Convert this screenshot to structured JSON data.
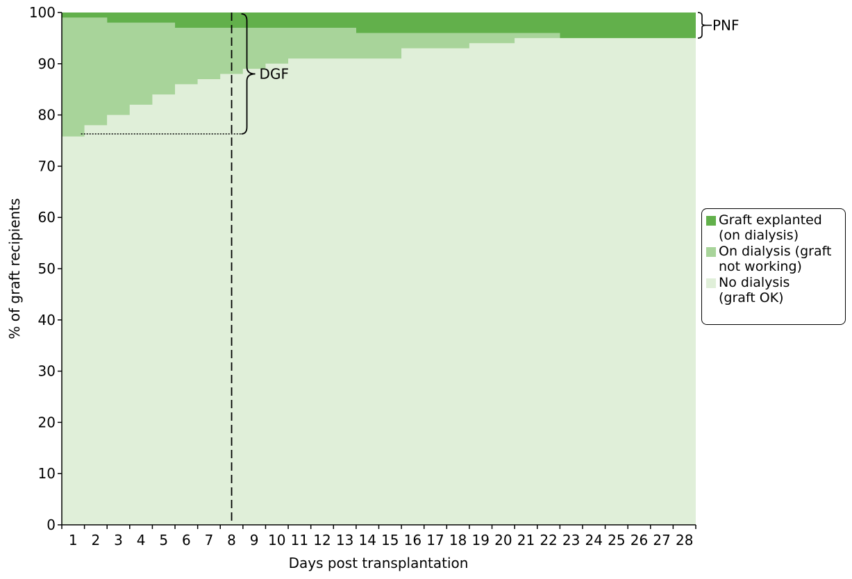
{
  "chart_data": {
    "type": "area",
    "stacked": true,
    "step": true,
    "title": "",
    "xlabel": "Days post transplantation",
    "ylabel": "% of graft recipients",
    "ylim": [
      0,
      100
    ],
    "yticks": [
      0,
      10,
      20,
      30,
      40,
      50,
      60,
      70,
      80,
      90,
      100
    ],
    "categories": [
      "1",
      "2",
      "3",
      "4",
      "5",
      "6",
      "7",
      "8",
      "9",
      "10",
      "11",
      "12",
      "13",
      "14",
      "15",
      "16",
      "17",
      "18",
      "19",
      "20",
      "21",
      "22",
      "23",
      "24",
      "25",
      "26",
      "27",
      "28"
    ],
    "grid": false,
    "legend_position": "right",
    "series": [
      {
        "name": "No dialysis (graft OK)",
        "color": "#e0efd9",
        "values": [
          75.8,
          78,
          80,
          82,
          84,
          86,
          87,
          88,
          89,
          90,
          91,
          91,
          91,
          91,
          91,
          93,
          93,
          93,
          94,
          94,
          95,
          95,
          95,
          95,
          95,
          95,
          95,
          95
        ]
      },
      {
        "name": "On dialysis (graft not working)",
        "color": "#a8d49a",
        "values": [
          23.2,
          21,
          18,
          16,
          14,
          11,
          10,
          9,
          8,
          7,
          6,
          6,
          6,
          5,
          5,
          3,
          3,
          3,
          2,
          2,
          1,
          1,
          0,
          0,
          0,
          0,
          0,
          0
        ]
      },
      {
        "name": "Graft explanted (on dialysis)",
        "color": "#62b04b",
        "values": [
          1,
          1,
          2,
          2,
          2,
          3,
          3,
          3,
          3,
          3,
          3,
          3,
          3,
          4,
          4,
          4,
          4,
          4,
          4,
          4,
          4,
          4,
          5,
          5,
          5,
          5,
          5,
          5
        ]
      }
    ],
    "annotations": {
      "dgf_label": "DGF",
      "pnf_label": "PNF",
      "cutoff_day": 7.5,
      "dgf_baseline": 76.3
    }
  },
  "legend": {
    "items": [
      {
        "label": "Graft explanted\n(on dialysis)",
        "color": "#62b04b"
      },
      {
        "label": "On dialysis (graft\nnot working)",
        "color": "#a8d49a"
      },
      {
        "label": "No dialysis\n(graft OK)",
        "color": "#e0efd9"
      }
    ]
  }
}
